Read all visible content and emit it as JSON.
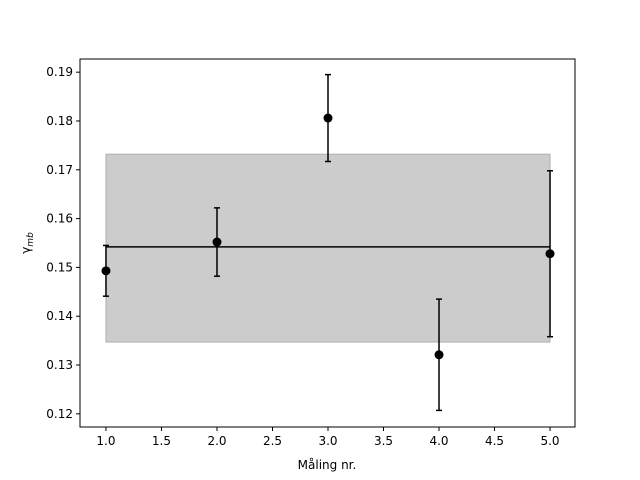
{
  "chart_data": {
    "type": "errorbar",
    "x_label": "Måling nr.",
    "y_label": {
      "text": "γ",
      "subscript": "mb"
    },
    "x": [
      1,
      2,
      3,
      4,
      5
    ],
    "series": [
      {
        "color": "#000000",
        "values": [
          0.1493,
          0.1552,
          0.1806,
          0.1321,
          0.1528
        ],
        "errors": [
          0.0052,
          0.007,
          0.0089,
          0.0114,
          0.017
        ]
      }
    ],
    "mean": 0.1542,
    "band": {
      "low": 0.1347,
      "high": 0.1732,
      "color": "#cccccc"
    },
    "xlim": [
      0.766,
      5.225
    ],
    "ylim": [
      0.1173,
      0.1927
    ],
    "xticks": [
      {
        "value": 1,
        "label": "1.0"
      },
      {
        "value": 1.5,
        "label": "1.5"
      },
      {
        "value": 2,
        "label": "2.0"
      },
      {
        "value": 2.5,
        "label": "2.5"
      },
      {
        "value": 3,
        "label": "3.0"
      },
      {
        "value": 3.5,
        "label": "3.5"
      },
      {
        "value": 4,
        "label": "4.0"
      },
      {
        "value": 4.5,
        "label": "4.5"
      },
      {
        "value": 5,
        "label": "5.0"
      }
    ],
    "yticks": [
      0.12,
      0.13,
      0.14,
      0.15,
      0.16,
      0.17,
      0.18,
      0.19
    ]
  }
}
